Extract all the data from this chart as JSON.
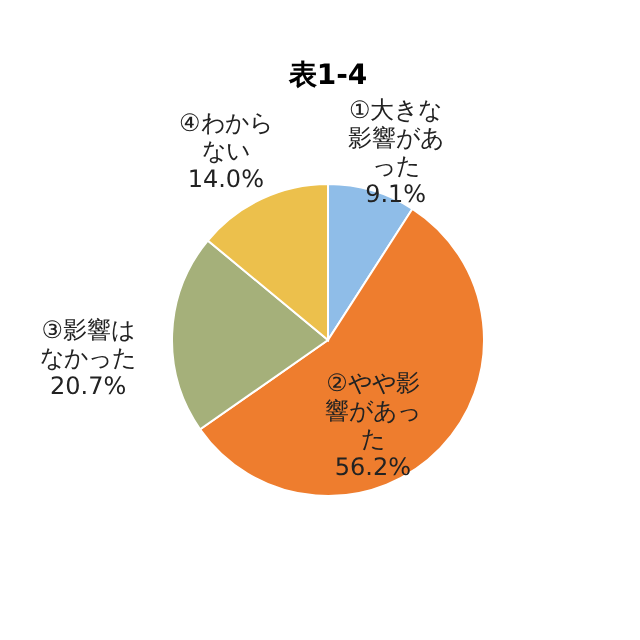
{
  "chart_data": {
    "type": "pie",
    "title": "表1-4",
    "categories": [
      "①大きな影響があった",
      "②やや影響があった",
      "③影響はなかった",
      "④わからない"
    ],
    "values": [
      9.1,
      56.2,
      20.7,
      14.0
    ],
    "value_labels": [
      "9.1%",
      "56.2%",
      "20.7%",
      "14.0%"
    ],
    "colors": [
      "#8fbde8",
      "#ee7d2e",
      "#a5b07a",
      "#ecc04c"
    ],
    "legend": false
  }
}
